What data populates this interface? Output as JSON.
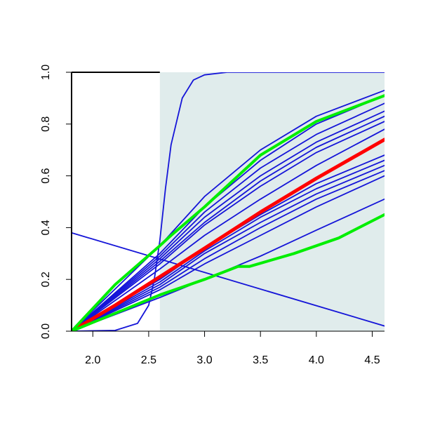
{
  "chart_data": {
    "type": "line",
    "title": "",
    "xlabel": "",
    "ylabel": "",
    "xlim": [
      1.81,
      4.61
    ],
    "ylim": [
      0.0,
      1.0
    ],
    "x_ticks": [
      {
        "value": 2.0,
        "label": "2.0"
      },
      {
        "value": 2.5,
        "label": "2.5"
      },
      {
        "value": 3.0,
        "label": "3.0"
      },
      {
        "value": 3.5,
        "label": "3.5"
      },
      {
        "value": 4.0,
        "label": "4.0"
      },
      {
        "value": 4.5,
        "label": "4.5"
      }
    ],
    "y_ticks": [
      {
        "value": 0.0,
        "label": "0.0"
      },
      {
        "value": 0.2,
        "label": "0.2"
      },
      {
        "value": 0.4,
        "label": "0.4"
      },
      {
        "value": 0.6,
        "label": "0.6"
      },
      {
        "value": 0.8,
        "label": "0.8"
      },
      {
        "value": 1.0,
        "label": "1.0"
      }
    ],
    "shaded_region": {
      "x_from": 2.6,
      "x_to": 4.61,
      "color": "#e0ecec"
    },
    "colors": {
      "blue": "#1515d8",
      "red": "#ff0000",
      "green": "#00ee00"
    },
    "series": [
      {
        "color": "blue",
        "width": 1.8,
        "points": [
          [
            1.81,
            0.38
          ],
          [
            4.61,
            0.02
          ]
        ]
      },
      {
        "color": "blue",
        "width": 1.8,
        "points": [
          [
            1.81,
            0.0
          ],
          [
            2.2,
            0.003
          ],
          [
            2.4,
            0.03
          ],
          [
            2.5,
            0.1
          ],
          [
            2.55,
            0.2
          ],
          [
            2.6,
            0.35
          ],
          [
            2.65,
            0.55
          ],
          [
            2.7,
            0.72
          ],
          [
            2.8,
            0.9
          ],
          [
            2.9,
            0.97
          ],
          [
            3.0,
            0.99
          ],
          [
            3.2,
            1.0
          ],
          [
            4.61,
            1.0
          ]
        ]
      },
      {
        "color": "blue",
        "width": 1.8,
        "points": [
          [
            1.81,
            0.0
          ],
          [
            2.6,
            0.33
          ],
          [
            3.0,
            0.52
          ],
          [
            3.5,
            0.7
          ],
          [
            4.0,
            0.83
          ],
          [
            4.61,
            0.93
          ]
        ]
      },
      {
        "color": "blue",
        "width": 1.8,
        "points": [
          [
            1.81,
            0.0
          ],
          [
            2.6,
            0.3
          ],
          [
            3.0,
            0.48
          ],
          [
            3.5,
            0.66
          ],
          [
            4.0,
            0.8
          ],
          [
            4.61,
            0.91
          ]
        ]
      },
      {
        "color": "blue",
        "width": 1.8,
        "points": [
          [
            1.81,
            0.0
          ],
          [
            2.6,
            0.29
          ],
          [
            3.0,
            0.46
          ],
          [
            3.5,
            0.63
          ],
          [
            4.0,
            0.76
          ],
          [
            4.61,
            0.88
          ]
        ]
      },
      {
        "color": "blue",
        "width": 1.8,
        "points": [
          [
            1.81,
            0.0
          ],
          [
            2.6,
            0.28
          ],
          [
            3.0,
            0.44
          ],
          [
            3.5,
            0.6
          ],
          [
            4.0,
            0.73
          ],
          [
            4.61,
            0.85
          ]
        ]
      },
      {
        "color": "blue",
        "width": 1.8,
        "points": [
          [
            1.81,
            0.0
          ],
          [
            2.6,
            0.27
          ],
          [
            3.0,
            0.42
          ],
          [
            3.5,
            0.58
          ],
          [
            4.0,
            0.71
          ],
          [
            4.61,
            0.83
          ]
        ]
      },
      {
        "color": "blue",
        "width": 1.8,
        "points": [
          [
            1.81,
            0.0
          ],
          [
            2.6,
            0.26
          ],
          [
            3.0,
            0.41
          ],
          [
            3.5,
            0.56
          ],
          [
            4.0,
            0.69
          ],
          [
            4.61,
            0.81
          ]
        ]
      },
      {
        "color": "blue",
        "width": 1.8,
        "points": [
          [
            1.81,
            0.0
          ],
          [
            2.6,
            0.24
          ],
          [
            3.0,
            0.37
          ],
          [
            3.5,
            0.51
          ],
          [
            4.0,
            0.64
          ],
          [
            4.61,
            0.78
          ]
        ]
      },
      {
        "color": "blue",
        "width": 1.8,
        "points": [
          [
            1.81,
            0.0
          ],
          [
            2.6,
            0.2
          ],
          [
            3.0,
            0.32
          ],
          [
            3.5,
            0.45
          ],
          [
            4.0,
            0.57
          ],
          [
            4.61,
            0.68
          ]
        ]
      },
      {
        "color": "blue",
        "width": 1.8,
        "points": [
          [
            1.81,
            0.0
          ],
          [
            2.6,
            0.19
          ],
          [
            3.0,
            0.31
          ],
          [
            3.5,
            0.44
          ],
          [
            4.0,
            0.55
          ],
          [
            4.61,
            0.66
          ]
        ]
      },
      {
        "color": "blue",
        "width": 1.8,
        "points": [
          [
            1.81,
            0.0
          ],
          [
            2.6,
            0.18
          ],
          [
            3.0,
            0.3
          ],
          [
            3.5,
            0.42
          ],
          [
            4.0,
            0.53
          ],
          [
            4.61,
            0.64
          ]
        ]
      },
      {
        "color": "blue",
        "width": 1.8,
        "points": [
          [
            1.81,
            0.0
          ],
          [
            2.6,
            0.17
          ],
          [
            3.0,
            0.28
          ],
          [
            3.5,
            0.4
          ],
          [
            4.0,
            0.51
          ],
          [
            4.61,
            0.62
          ]
        ]
      },
      {
        "color": "blue",
        "width": 1.8,
        "points": [
          [
            1.81,
            0.0
          ],
          [
            2.6,
            0.16
          ],
          [
            3.0,
            0.26
          ],
          [
            3.5,
            0.37
          ],
          [
            4.0,
            0.48
          ],
          [
            4.61,
            0.6
          ]
        ]
      },
      {
        "color": "blue",
        "width": 1.8,
        "points": [
          [
            1.81,
            0.0
          ],
          [
            2.6,
            0.13
          ],
          [
            3.0,
            0.2
          ],
          [
            3.5,
            0.29
          ],
          [
            4.0,
            0.39
          ],
          [
            4.61,
            0.51
          ]
        ]
      },
      {
        "color": "red",
        "width": 5,
        "points": [
          [
            1.81,
            0.0
          ],
          [
            2.2,
            0.1
          ],
          [
            2.6,
            0.21
          ],
          [
            3.0,
            0.32
          ],
          [
            3.5,
            0.46
          ],
          [
            4.0,
            0.59
          ],
          [
            4.61,
            0.74
          ]
        ]
      },
      {
        "color": "green",
        "width": 4,
        "points": [
          [
            1.81,
            0.0
          ],
          [
            2.2,
            0.18
          ],
          [
            2.6,
            0.33
          ],
          [
            2.7,
            0.37
          ],
          [
            3.0,
            0.48
          ],
          [
            3.5,
            0.68
          ],
          [
            4.0,
            0.81
          ],
          [
            4.61,
            0.91
          ]
        ]
      },
      {
        "color": "green",
        "width": 4,
        "points": [
          [
            1.81,
            0.0
          ],
          [
            2.6,
            0.14
          ],
          [
            3.0,
            0.2
          ],
          [
            3.3,
            0.25
          ],
          [
            3.4,
            0.25
          ],
          [
            3.8,
            0.3
          ],
          [
            4.2,
            0.36
          ],
          [
            4.61,
            0.45
          ]
        ]
      }
    ]
  }
}
